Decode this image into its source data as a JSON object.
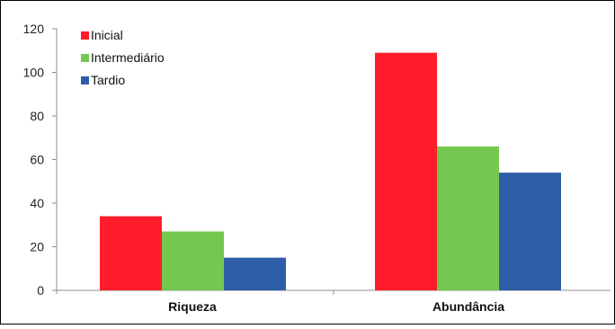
{
  "chart_data": {
    "type": "bar",
    "categories": [
      "Riqueza",
      "Abundância"
    ],
    "series": [
      {
        "name": "Inicial",
        "values": [
          34,
          109
        ],
        "color": "#ff1c2b"
      },
      {
        "name": "Intermediário",
        "values": [
          27,
          66
        ],
        "color": "#74c84f"
      },
      {
        "name": "Tardio",
        "values": [
          15,
          54
        ],
        "color": "#2f5ea8"
      }
    ],
    "title": "",
    "xlabel": "",
    "ylabel": "",
    "ylim": [
      0,
      120
    ],
    "yticks": [
      0,
      20,
      40,
      60,
      80,
      100,
      120
    ],
    "grid": false,
    "legend_position": "top-left"
  }
}
